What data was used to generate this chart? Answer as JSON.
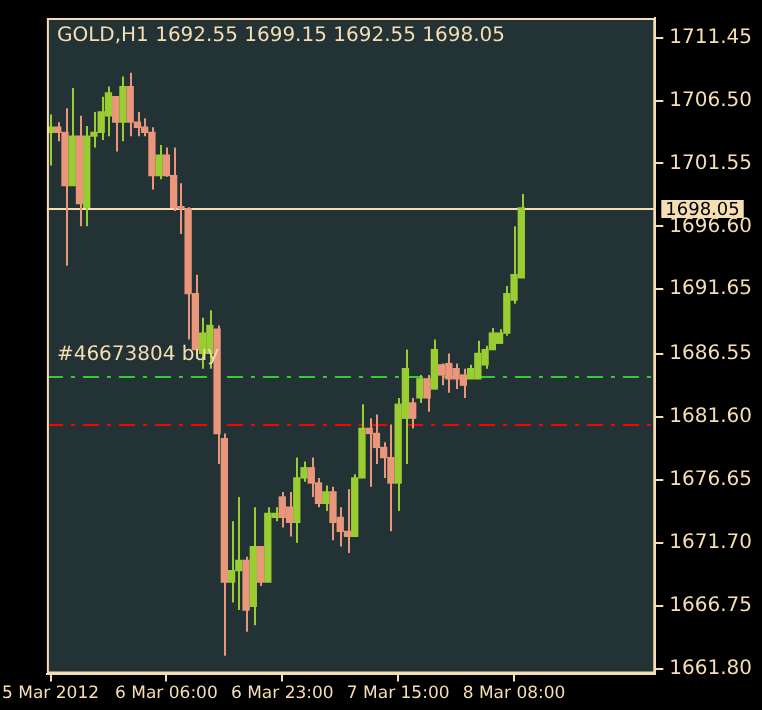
{
  "chart_data": {
    "type": "candlestick",
    "title": "GOLD,H1 1692.55 1699.15 1692.55 1698.05",
    "categories": [
      "5 Mar 2012",
      null,
      null,
      null,
      null,
      null,
      null,
      null,
      null,
      null,
      null,
      null,
      null,
      null,
      null,
      null,
      "6 Mar 06:00",
      null,
      null,
      null,
      null,
      null,
      null,
      null,
      null,
      null,
      null,
      null,
      null,
      null,
      null,
      null,
      "6 Mar 23:00",
      null,
      null,
      null,
      null,
      null,
      null,
      null,
      null,
      null,
      null,
      null,
      null,
      null,
      null,
      null,
      "7 Mar 15:00",
      null,
      null,
      null,
      null,
      null,
      null,
      null,
      null,
      null,
      null,
      null,
      null,
      null,
      null,
      null,
      "8 Mar 08:00",
      null,
      null,
      null,
      null,
      null,
      null,
      null,
      null,
      null,
      null,
      null,
      null,
      null,
      null,
      null,
      null,
      null,
      null,
      null
    ],
    "ohlc": [
      [
        1704.0,
        1705.4,
        1701.4,
        1704.4
      ],
      [
        1704.4,
        1704.8,
        1703.3,
        1704.0
      ],
      [
        1704.0,
        1705.9,
        1693.5,
        1699.8
      ],
      [
        1699.8,
        1707.5,
        1699.8,
        1703.7
      ],
      [
        1703.7,
        1705.3,
        1696.6,
        1698.4
      ],
      [
        1698.1,
        1704.5,
        1696.6,
        1703.7
      ],
      [
        1703.7,
        1705.6,
        1702.8,
        1704.0
      ],
      [
        1704.0,
        1706.8,
        1703.4,
        1705.6
      ],
      [
        1705.3,
        1707.6,
        1703.7,
        1707.1
      ],
      [
        1706.8,
        1706.8,
        1702.5,
        1704.8
      ],
      [
        1704.8,
        1708.4,
        1703.3,
        1707.6
      ],
      [
        1707.6,
        1708.7,
        1703.7,
        1704.8
      ],
      [
        1704.8,
        1705.6,
        1703.7,
        1704.4
      ],
      [
        1704.4,
        1705.1,
        1703.7,
        1704.0
      ],
      [
        1704.0,
        1704.4,
        1699.5,
        1700.6
      ],
      [
        1700.6,
        1703.0,
        1700.3,
        1702.2
      ],
      [
        1702.2,
        1702.8,
        1700.5,
        1700.6
      ],
      [
        1700.6,
        1702.8,
        1697.8,
        1698.1
      ],
      [
        1698.1,
        1700.0,
        1696.0,
        1698.0
      ],
      [
        1698.0,
        1698.1,
        1687.7,
        1691.3
      ],
      [
        1691.3,
        1692.8,
        1686.2,
        1686.9
      ],
      [
        1686.6,
        1689.4,
        1685.4,
        1688.2
      ],
      [
        1686.6,
        1690.0,
        1685.4,
        1688.8
      ],
      [
        1688.5,
        1688.8,
        1677.9,
        1680.3
      ],
      [
        1679.9,
        1680.3,
        1662.8,
        1668.6
      ],
      [
        1668.6,
        1673.4,
        1667.0,
        1669.5
      ],
      [
        1669.5,
        1675.3,
        1666.4,
        1670.3
      ],
      [
        1670.3,
        1670.6,
        1664.7,
        1666.4
      ],
      [
        1666.7,
        1674.5,
        1665.2,
        1671.4
      ],
      [
        1671.4,
        1671.4,
        1668.3,
        1668.6
      ],
      [
        1668.6,
        1674.5,
        1668.6,
        1674.0
      ],
      [
        1673.7,
        1674.5,
        1673.4,
        1674.0
      ],
      [
        1675.3,
        1675.7,
        1672.9,
        1673.7
      ],
      [
        1674.5,
        1675.7,
        1672.2,
        1673.3
      ],
      [
        1673.3,
        1678.4,
        1671.7,
        1676.8
      ],
      [
        1676.8,
        1678.1,
        1676.5,
        1677.6
      ],
      [
        1677.6,
        1678.4,
        1675.3,
        1676.4
      ],
      [
        1676.4,
        1676.8,
        1674.5,
        1674.8
      ],
      [
        1674.8,
        1676.2,
        1674.2,
        1675.7
      ],
      [
        1675.7,
        1676.1,
        1671.9,
        1673.3
      ],
      [
        1673.7,
        1674.5,
        1671.4,
        1672.6
      ],
      [
        1672.6,
        1675.9,
        1670.9,
        1672.2
      ],
      [
        1672.2,
        1677.1,
        1672.2,
        1676.8
      ],
      [
        1676.8,
        1682.6,
        1676.8,
        1680.7
      ],
      [
        1680.7,
        1681.5,
        1676.1,
        1680.3
      ],
      [
        1680.3,
        1681.8,
        1677.9,
        1679.2
      ],
      [
        1679.2,
        1679.6,
        1676.8,
        1678.4
      ],
      [
        1678.4,
        1681.0,
        1672.6,
        1676.4
      ],
      [
        1676.4,
        1683.1,
        1674.2,
        1682.6
      ],
      [
        1681.5,
        1686.9,
        1677.9,
        1685.4
      ],
      [
        1682.7,
        1683.1,
        1680.7,
        1681.5
      ],
      [
        1683.1,
        1684.9,
        1682.7,
        1684.6
      ],
      [
        1684.6,
        1684.9,
        1682.0,
        1683.1
      ],
      [
        1683.8,
        1687.7,
        1683.8,
        1686.9
      ],
      [
        1685.7,
        1685.8,
        1684.1,
        1684.9
      ],
      [
        1685.8,
        1686.6,
        1683.5,
        1684.6
      ],
      [
        1685.4,
        1685.8,
        1683.8,
        1684.6
      ],
      [
        1684.9,
        1685.4,
        1683.1,
        1684.1
      ],
      [
        1684.6,
        1685.7,
        1684.6,
        1685.4
      ],
      [
        1684.6,
        1687.6,
        1684.6,
        1686.6
      ],
      [
        1685.7,
        1687.2,
        1685.4,
        1686.9
      ],
      [
        1686.9,
        1688.6,
        1686.9,
        1688.2
      ],
      [
        1687.4,
        1688.5,
        1687.4,
        1688.2
      ],
      [
        1688.2,
        1691.9,
        1688.0,
        1691.3
      ],
      [
        1690.8,
        1696.6,
        1690.5,
        1692.8
      ],
      [
        1692.55,
        1699.15,
        1692.55,
        1698.05
      ],
      null,
      null,
      null,
      null,
      null,
      null,
      null,
      null,
      null,
      null,
      null,
      null,
      null,
      null,
      null,
      null,
      null,
      null
    ],
    "colors": [
      "#9acd32",
      "#e9967a",
      "#e9967a",
      "#9acd32",
      "#e9967a",
      "#9acd32",
      "#9acd32",
      "#9acd32",
      "#9acd32",
      "#e9967a",
      "#9acd32",
      "#e9967a",
      "#e9967a",
      "#e9967a",
      "#e9967a",
      "#9acd32",
      "#e9967a",
      "#e9967a",
      "#e9967a",
      "#e9967a",
      "#e9967a",
      "#9acd32",
      "#9acd32",
      "#e9967a",
      "#e9967a",
      "#9acd32",
      "#9acd32",
      "#e9967a",
      "#9acd32",
      "#e9967a",
      "#9acd32",
      "#9acd32",
      "#e9967a",
      "#e9967a",
      "#9acd32",
      "#9acd32",
      "#e9967a",
      "#e9967a",
      "#9acd32",
      "#e9967a",
      "#e9967a",
      "#e9967a",
      "#9acd32",
      "#9acd32",
      "#e9967a",
      "#e9967a",
      "#e9967a",
      "#e9967a",
      "#9acd32",
      "#9acd32",
      "#e9967a",
      "#9acd32",
      "#e9967a",
      "#9acd32",
      "#e9967a",
      "#e9967a",
      "#e9967a",
      "#e9967a",
      "#9acd32",
      "#9acd32",
      "#9acd32",
      "#9acd32",
      "#9acd32",
      "#9acd32",
      "#9acd32",
      "#9acd32",
      null,
      null,
      null,
      null,
      null,
      null,
      null,
      null,
      null,
      null,
      null,
      null,
      null,
      null,
      null,
      null,
      null,
      null
    ],
    "ylim": [
      1661.4,
      1713.0
    ],
    "yticks": [
      {
        "value": 1711.45,
        "label": "1711.45"
      },
      {
        "value": 1706.5,
        "label": "1706.50"
      },
      {
        "value": 1701.55,
        "label": "1701.55"
      },
      {
        "value": 1696.6,
        "label": "1696.60"
      },
      {
        "value": 1691.65,
        "label": "1691.65"
      },
      {
        "value": 1686.55,
        "label": "1686.55"
      },
      {
        "value": 1681.6,
        "label": "1681.60"
      },
      {
        "value": 1676.65,
        "label": "1676.65"
      },
      {
        "value": 1671.7,
        "label": "1671.70"
      },
      {
        "value": 1666.75,
        "label": "1666.75"
      },
      {
        "value": 1661.8,
        "label": "1661.80"
      }
    ],
    "ref_lines": [
      {
        "axis": "y",
        "value": 1698.05,
        "label": "1698.05",
        "color": "#f5deb3",
        "line_style": "solid"
      },
      {
        "axis": "y",
        "value": 1684.9,
        "label": "#46673804 buy",
        "color": "#32cd32",
        "line_style": "dashed"
      },
      {
        "axis": "y",
        "value": 1681.0,
        "label": null,
        "color": "#ff0000",
        "line_style": "dashed"
      }
    ],
    "grid": false,
    "legend": false
  }
}
